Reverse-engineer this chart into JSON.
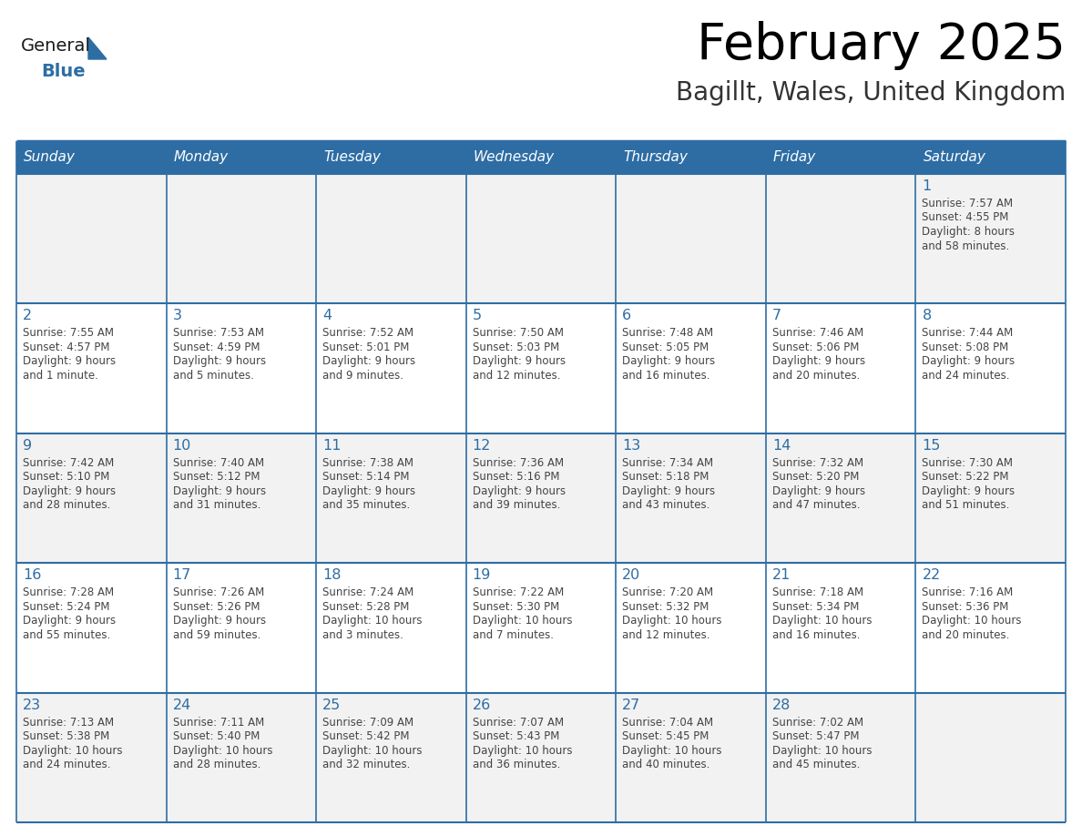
{
  "title": "February 2025",
  "subtitle": "Bagillt, Wales, United Kingdom",
  "header_bg": "#2E6DA4",
  "header_text_color": "#FFFFFF",
  "cell_bg_odd": "#F2F2F2",
  "cell_bg_even": "#FFFFFF",
  "border_color": "#2E6DA4",
  "text_color": "#444444",
  "day_headers": [
    "Sunday",
    "Monday",
    "Tuesday",
    "Wednesday",
    "Thursday",
    "Friday",
    "Saturday"
  ],
  "days_data": [
    {
      "day": 1,
      "col": 6,
      "row": 0,
      "sunrise": "7:57 AM",
      "sunset": "4:55 PM",
      "daylight": "8 hours and 58 minutes."
    },
    {
      "day": 2,
      "col": 0,
      "row": 1,
      "sunrise": "7:55 AM",
      "sunset": "4:57 PM",
      "daylight": "9 hours and 1 minute."
    },
    {
      "day": 3,
      "col": 1,
      "row": 1,
      "sunrise": "7:53 AM",
      "sunset": "4:59 PM",
      "daylight": "9 hours and 5 minutes."
    },
    {
      "day": 4,
      "col": 2,
      "row": 1,
      "sunrise": "7:52 AM",
      "sunset": "5:01 PM",
      "daylight": "9 hours and 9 minutes."
    },
    {
      "day": 5,
      "col": 3,
      "row": 1,
      "sunrise": "7:50 AM",
      "sunset": "5:03 PM",
      "daylight": "9 hours and 12 minutes."
    },
    {
      "day": 6,
      "col": 4,
      "row": 1,
      "sunrise": "7:48 AM",
      "sunset": "5:05 PM",
      "daylight": "9 hours and 16 minutes."
    },
    {
      "day": 7,
      "col": 5,
      "row": 1,
      "sunrise": "7:46 AM",
      "sunset": "5:06 PM",
      "daylight": "9 hours and 20 minutes."
    },
    {
      "day": 8,
      "col": 6,
      "row": 1,
      "sunrise": "7:44 AM",
      "sunset": "5:08 PM",
      "daylight": "9 hours and 24 minutes."
    },
    {
      "day": 9,
      "col": 0,
      "row": 2,
      "sunrise": "7:42 AM",
      "sunset": "5:10 PM",
      "daylight": "9 hours and 28 minutes."
    },
    {
      "day": 10,
      "col": 1,
      "row": 2,
      "sunrise": "7:40 AM",
      "sunset": "5:12 PM",
      "daylight": "9 hours and 31 minutes."
    },
    {
      "day": 11,
      "col": 2,
      "row": 2,
      "sunrise": "7:38 AM",
      "sunset": "5:14 PM",
      "daylight": "9 hours and 35 minutes."
    },
    {
      "day": 12,
      "col": 3,
      "row": 2,
      "sunrise": "7:36 AM",
      "sunset": "5:16 PM",
      "daylight": "9 hours and 39 minutes."
    },
    {
      "day": 13,
      "col": 4,
      "row": 2,
      "sunrise": "7:34 AM",
      "sunset": "5:18 PM",
      "daylight": "9 hours and 43 minutes."
    },
    {
      "day": 14,
      "col": 5,
      "row": 2,
      "sunrise": "7:32 AM",
      "sunset": "5:20 PM",
      "daylight": "9 hours and 47 minutes."
    },
    {
      "day": 15,
      "col": 6,
      "row": 2,
      "sunrise": "7:30 AM",
      "sunset": "5:22 PM",
      "daylight": "9 hours and 51 minutes."
    },
    {
      "day": 16,
      "col": 0,
      "row": 3,
      "sunrise": "7:28 AM",
      "sunset": "5:24 PM",
      "daylight": "9 hours and 55 minutes."
    },
    {
      "day": 17,
      "col": 1,
      "row": 3,
      "sunrise": "7:26 AM",
      "sunset": "5:26 PM",
      "daylight": "9 hours and 59 minutes."
    },
    {
      "day": 18,
      "col": 2,
      "row": 3,
      "sunrise": "7:24 AM",
      "sunset": "5:28 PM",
      "daylight": "10 hours and 3 minutes."
    },
    {
      "day": 19,
      "col": 3,
      "row": 3,
      "sunrise": "7:22 AM",
      "sunset": "5:30 PM",
      "daylight": "10 hours and 7 minutes."
    },
    {
      "day": 20,
      "col": 4,
      "row": 3,
      "sunrise": "7:20 AM",
      "sunset": "5:32 PM",
      "daylight": "10 hours and 12 minutes."
    },
    {
      "day": 21,
      "col": 5,
      "row": 3,
      "sunrise": "7:18 AM",
      "sunset": "5:34 PM",
      "daylight": "10 hours and 16 minutes."
    },
    {
      "day": 22,
      "col": 6,
      "row": 3,
      "sunrise": "7:16 AM",
      "sunset": "5:36 PM",
      "daylight": "10 hours and 20 minutes."
    },
    {
      "day": 23,
      "col": 0,
      "row": 4,
      "sunrise": "7:13 AM",
      "sunset": "5:38 PM",
      "daylight": "10 hours and 24 minutes."
    },
    {
      "day": 24,
      "col": 1,
      "row": 4,
      "sunrise": "7:11 AM",
      "sunset": "5:40 PM",
      "daylight": "10 hours and 28 minutes."
    },
    {
      "day": 25,
      "col": 2,
      "row": 4,
      "sunrise": "7:09 AM",
      "sunset": "5:42 PM",
      "daylight": "10 hours and 32 minutes."
    },
    {
      "day": 26,
      "col": 3,
      "row": 4,
      "sunrise": "7:07 AM",
      "sunset": "5:43 PM",
      "daylight": "10 hours and 36 minutes."
    },
    {
      "day": 27,
      "col": 4,
      "row": 4,
      "sunrise": "7:04 AM",
      "sunset": "5:45 PM",
      "daylight": "10 hours and 40 minutes."
    },
    {
      "day": 28,
      "col": 5,
      "row": 4,
      "sunrise": "7:02 AM",
      "sunset": "5:47 PM",
      "daylight": "10 hours and 45 minutes."
    }
  ],
  "num_rows": 5,
  "logo_text_general": "General",
  "logo_text_blue": "Blue",
  "logo_color_general": "#1a1a1a",
  "logo_color_blue": "#2E6DA4",
  "logo_triangle_color": "#2E6DA4"
}
